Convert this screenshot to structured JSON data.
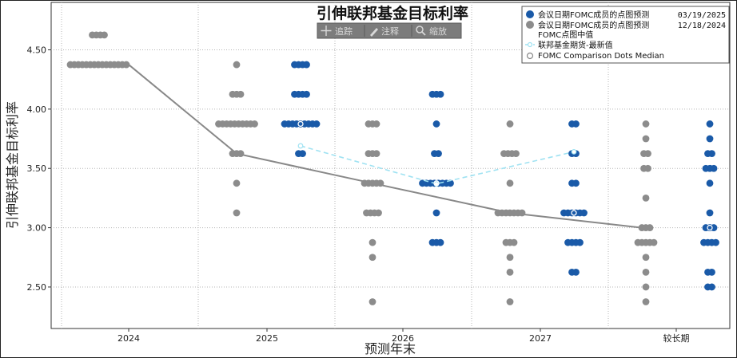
{
  "toolbar": {
    "items": [
      {
        "label": "追踪",
        "icon": "crosshair-icon"
      },
      {
        "label": "注释",
        "icon": "pencil-icon"
      },
      {
        "label": "缩放",
        "icon": "magnifier-icon"
      }
    ]
  },
  "chart_data": {
    "type": "scatter",
    "title": "引伸联邦基金目标利率",
    "xlabel": "预测年末",
    "ylabel": "引伸联邦基金目标利率",
    "categories": [
      "2024",
      "2025",
      "2026",
      "2027",
      "较长期"
    ],
    "ylim": [
      2.15,
      4.9
    ],
    "yticks": [
      2.5,
      3.0,
      3.5,
      4.0,
      4.5
    ],
    "ytick_labels": [
      "2.50",
      "3.00",
      "3.50",
      "4.00",
      "4.50"
    ],
    "grid": true,
    "legend_position": "top-right",
    "legend": [
      {
        "label": "会议日期FOMC成员的点图预测",
        "date": "03/19/2025",
        "marker": "dot",
        "color": "#1a5aa8"
      },
      {
        "label": "会议日期FOMC成员的点图预测",
        "date": "12/18/2024",
        "marker": "dot",
        "color": "#8c8c8c"
      },
      {
        "label": "FOMC点图中值",
        "marker": "none"
      },
      {
        "label": "联邦基金期货-最新值",
        "marker": "dashed-circle",
        "color": "#9fe2f2"
      },
      {
        "label": "FOMC Comparison Dots Median",
        "marker": "hollow-circle",
        "color": "#888888"
      }
    ],
    "series": [
      {
        "name": "会议日期FOMC成员的点图预测 12/18/2024",
        "color": "#8c8c8c",
        "points": [
          {
            "x": "2024",
            "y": 4.625,
            "count": 4
          },
          {
            "x": "2024",
            "y": 4.375,
            "count": 15
          },
          {
            "x": "2025",
            "y": 4.375,
            "count": 1
          },
          {
            "x": "2025",
            "y": 4.125,
            "count": 3
          },
          {
            "x": "2025",
            "y": 3.875,
            "count": 10
          },
          {
            "x": "2025",
            "y": 3.625,
            "count": 3
          },
          {
            "x": "2025",
            "y": 3.375,
            "count": 1
          },
          {
            "x": "2025",
            "y": 3.125,
            "count": 1
          },
          {
            "x": "2026",
            "y": 3.875,
            "count": 3
          },
          {
            "x": "2026",
            "y": 3.625,
            "count": 3
          },
          {
            "x": "2026",
            "y": 3.375,
            "count": 5
          },
          {
            "x": "2026",
            "y": 3.125,
            "count": 4
          },
          {
            "x": "2026",
            "y": 2.875,
            "count": 1
          },
          {
            "x": "2026",
            "y": 2.75,
            "count": 1
          },
          {
            "x": "2026",
            "y": 2.375,
            "count": 1
          },
          {
            "x": "2027",
            "y": 3.875,
            "count": 1
          },
          {
            "x": "2027",
            "y": 3.625,
            "count": 4
          },
          {
            "x": "2027",
            "y": 3.375,
            "count": 1
          },
          {
            "x": "2027",
            "y": 3.125,
            "count": 7
          },
          {
            "x": "2027",
            "y": 2.875,
            "count": 3
          },
          {
            "x": "2027",
            "y": 2.75,
            "count": 1
          },
          {
            "x": "2027",
            "y": 2.625,
            "count": 1
          },
          {
            "x": "2027",
            "y": 2.375,
            "count": 1
          },
          {
            "x": "较长期",
            "y": 3.875,
            "count": 1
          },
          {
            "x": "较长期",
            "y": 3.75,
            "count": 1
          },
          {
            "x": "较长期",
            "y": 3.625,
            "count": 2
          },
          {
            "x": "较长期",
            "y": 3.5,
            "count": 2
          },
          {
            "x": "较长期",
            "y": 3.25,
            "count": 1
          },
          {
            "x": "较长期",
            "y": 3.0,
            "count": 3
          },
          {
            "x": "较长期",
            "y": 2.875,
            "count": 5
          },
          {
            "x": "较长期",
            "y": 2.75,
            "count": 1
          },
          {
            "x": "较长期",
            "y": 2.625,
            "count": 1
          },
          {
            "x": "较长期",
            "y": 2.5,
            "count": 1
          },
          {
            "x": "较长期",
            "y": 2.375,
            "count": 1
          }
        ]
      },
      {
        "name": "会议日期FOMC成员的点图预测 03/19/2025",
        "color": "#1a5aa8",
        "points": [
          {
            "x": "2025",
            "y": 4.375,
            "count": 4
          },
          {
            "x": "2025",
            "y": 4.125,
            "count": 4
          },
          {
            "x": "2025",
            "y": 3.875,
            "count": 9
          },
          {
            "x": "2025",
            "y": 3.625,
            "count": 2
          },
          {
            "x": "2026",
            "y": 4.125,
            "count": 3
          },
          {
            "x": "2026",
            "y": 3.875,
            "count": 1
          },
          {
            "x": "2026",
            "y": 3.625,
            "count": 2
          },
          {
            "x": "2026",
            "y": 3.375,
            "count": 8
          },
          {
            "x": "2026",
            "y": 3.125,
            "count": 1
          },
          {
            "x": "2026",
            "y": 2.875,
            "count": 3
          },
          {
            "x": "2027",
            "y": 3.875,
            "count": 2
          },
          {
            "x": "2027",
            "y": 3.625,
            "count": 2
          },
          {
            "x": "2027",
            "y": 3.375,
            "count": 2
          },
          {
            "x": "2027",
            "y": 3.125,
            "count": 6
          },
          {
            "x": "2027",
            "y": 2.875,
            "count": 4
          },
          {
            "x": "2027",
            "y": 2.625,
            "count": 2
          },
          {
            "x": "较长期",
            "y": 3.875,
            "count": 1
          },
          {
            "x": "较长期",
            "y": 3.75,
            "count": 1
          },
          {
            "x": "较长期",
            "y": 3.625,
            "count": 2
          },
          {
            "x": "较长期",
            "y": 3.5,
            "count": 3
          },
          {
            "x": "较长期",
            "y": 3.375,
            "count": 1
          },
          {
            "x": "较长期",
            "y": 3.125,
            "count": 1
          },
          {
            "x": "较长期",
            "y": 3.0,
            "count": 3
          },
          {
            "x": "较长期",
            "y": 2.875,
            "count": 4
          },
          {
            "x": "较长期",
            "y": 2.625,
            "count": 2
          },
          {
            "x": "较长期",
            "y": 2.5,
            "count": 2
          }
        ]
      },
      {
        "name": "FOMC Comparison Dots Median",
        "color": "#888888",
        "style": "solid-line",
        "points": [
          {
            "x": "2024",
            "y": 4.375
          },
          {
            "x": "2025",
            "y": 3.625
          },
          {
            "x": "2026",
            "y": 3.375
          },
          {
            "x": "2027",
            "y": 3.125
          },
          {
            "x": "较长期",
            "y": 3.0
          }
        ]
      },
      {
        "name": "联邦基金期货-最新值",
        "color": "#9fe2f2",
        "style": "dashed-line",
        "points": [
          {
            "x": "2025",
            "y": 3.69
          },
          {
            "x": "2026",
            "y": 3.37
          },
          {
            "x": "2027",
            "y": 3.64
          }
        ]
      },
      {
        "name": "FOMC点图中值",
        "color": "#ffffff",
        "style": "hollow-circle",
        "points": [
          {
            "x": "2025",
            "y": 3.875
          },
          {
            "x": "2026",
            "y": 3.375
          },
          {
            "x": "2027",
            "y": 3.125
          },
          {
            "x": "较长期",
            "y": 3.0
          }
        ]
      }
    ]
  }
}
